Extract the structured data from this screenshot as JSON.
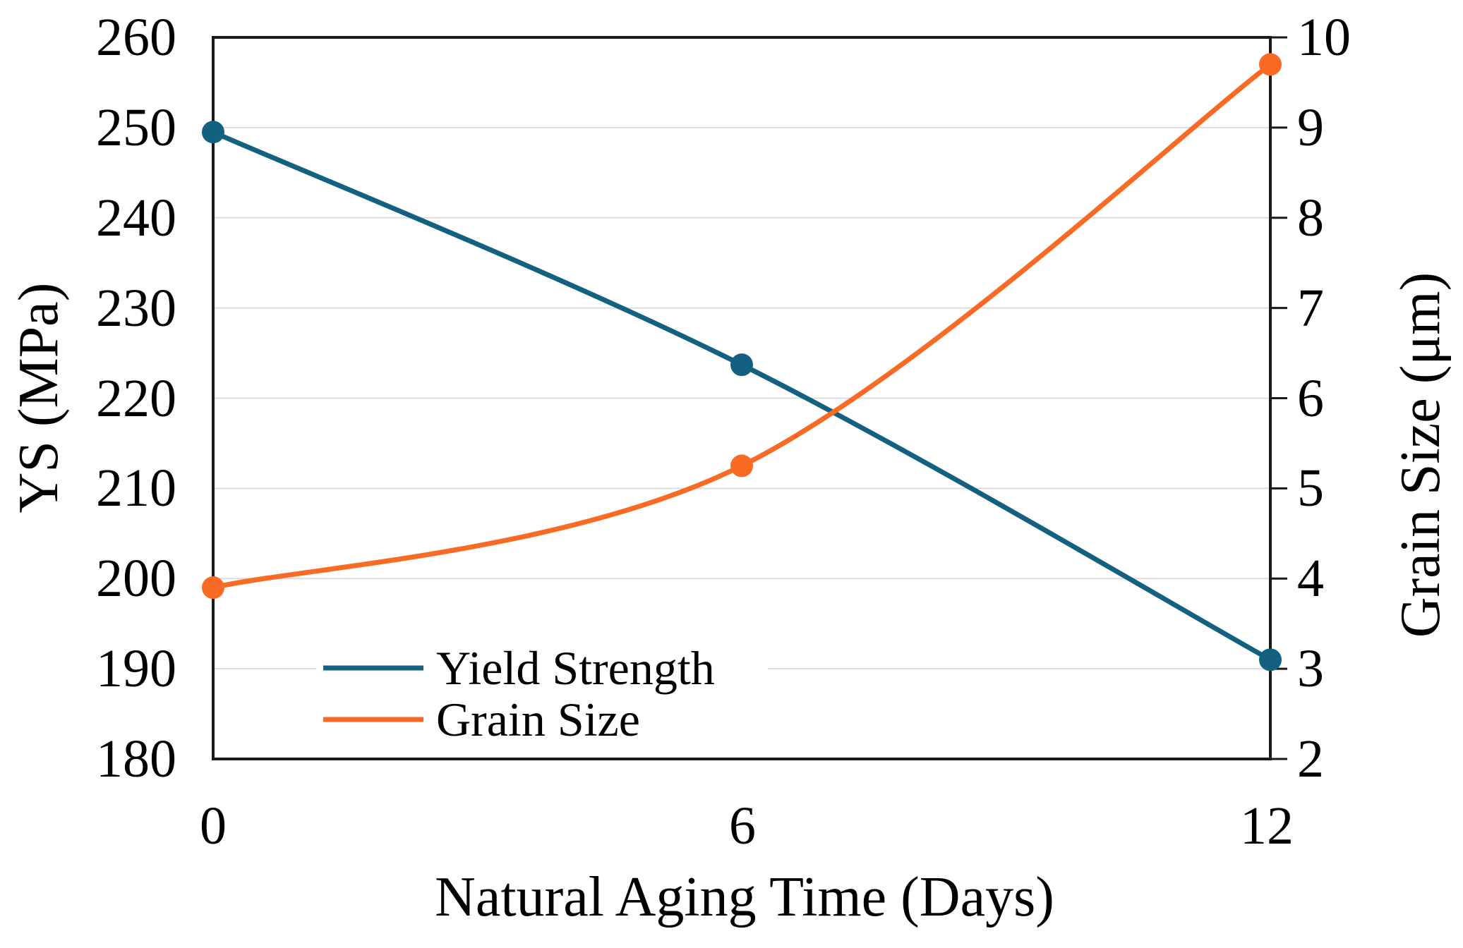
{
  "chart_data": {
    "type": "line",
    "x": [
      0,
      6,
      12
    ],
    "xlabel": "Natural Aging Time (Days)",
    "x_tick_labels": [
      "0",
      "6",
      "12"
    ],
    "series": [
      {
        "name": "Yield Strength",
        "axis": "left",
        "color": "#136080",
        "values": [
          249.5,
          223.7,
          191.0
        ]
      },
      {
        "name": "Grain Size",
        "axis": "right",
        "color": "#F96A25",
        "values": [
          3.9,
          5.25,
          9.7
        ]
      }
    ],
    "left_axis": {
      "label": "YS (MPa)",
      "min": 180,
      "max": 260,
      "tick_step": 10,
      "ticks": [
        "260",
        "250",
        "240",
        "230",
        "220",
        "210",
        "200",
        "190",
        "180"
      ]
    },
    "right_axis": {
      "label": "Grain Size (μm)",
      "min": 2,
      "max": 10,
      "tick_step": 1,
      "ticks": [
        "10",
        "9",
        "8",
        "7",
        "6",
        "5",
        "4",
        "3",
        "2"
      ]
    },
    "legend": {
      "entries": [
        "Yield Strength",
        "Grain Size"
      ],
      "position": "inside-bottom-left"
    },
    "grid": true,
    "line_smoothing": true,
    "marker": "circle"
  },
  "colors": {
    "axis_line": "#1a1a1a",
    "gridline": "#dcdcdc",
    "background": "#ffffff",
    "text": "#000000",
    "series_blue": "#136080",
    "series_orange": "#F96A25"
  }
}
